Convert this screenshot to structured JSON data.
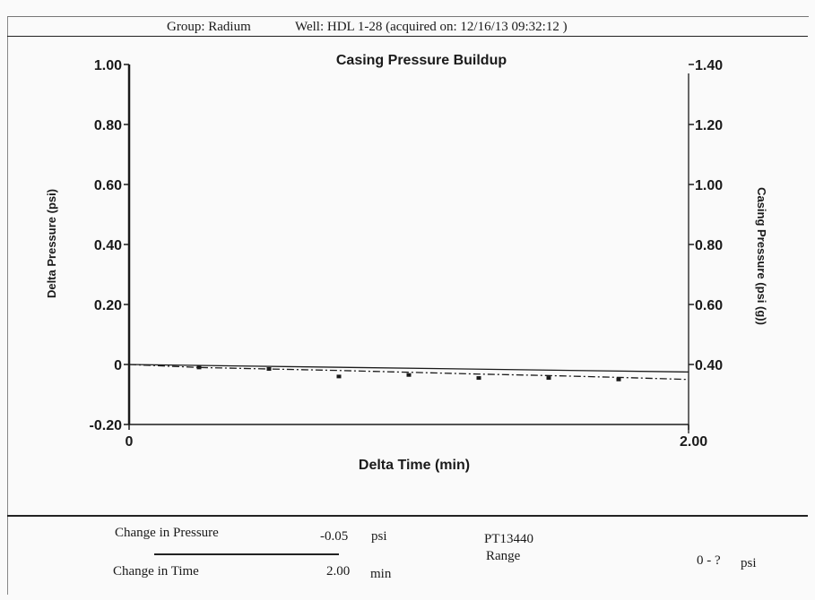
{
  "header": {
    "group_text": "Group: Radium",
    "well_text": "Well: HDL 1-28 (acquired on: 12/16/13 09:32:12 )"
  },
  "chart_data": {
    "type": "line",
    "title": "Casing Pressure Buildup",
    "xlabel": "Delta Time (min)",
    "ylabel": "Delta Pressure (psi)",
    "y2label": "Casing Pressure (psi (g))",
    "xlim": [
      0,
      2.0
    ],
    "ylim": [
      -0.2,
      1.0
    ],
    "y2lim": [
      0.2,
      1.4
    ],
    "x_tick_labels": [
      "0",
      "2.00"
    ],
    "y_tick_labels": [
      "1.00",
      "0.80",
      "0.60",
      "0.40",
      "0.20",
      "0",
      "-0.20"
    ],
    "y2_tick_labels": [
      "1.40",
      "1.20",
      "1.00",
      "0.80",
      "0.60",
      "0.40"
    ],
    "grid": false,
    "series": [
      {
        "axis": "left",
        "style": "dash-dot",
        "x": [
          0,
          0.25,
          0.5,
          0.75,
          1.0,
          1.25,
          1.5,
          1.75,
          2.0
        ],
        "y": [
          0.0,
          -0.01,
          -0.015,
          -0.02,
          -0.026,
          -0.032,
          -0.037,
          -0.043,
          -0.05
        ]
      },
      {
        "axis": "right",
        "style": "solid",
        "x": [
          0,
          2.0
        ],
        "y": [
          0.4,
          0.375
        ]
      }
    ],
    "markers": {
      "x": [
        0.25,
        0.5,
        0.75,
        1.0,
        1.25,
        1.5,
        1.75
      ],
      "y": [
        -0.01,
        -0.015,
        -0.04,
        -0.035,
        -0.045,
        -0.045,
        -0.05
      ]
    }
  },
  "footer": {
    "change_pressure_label": "Change in Pressure",
    "change_pressure_value": "-0.05",
    "change_pressure_unit": "psi",
    "change_time_label": "Change in Time",
    "change_time_value": "2.00",
    "change_time_unit": "min",
    "gauge_id": "PT13440",
    "range_label": "Range",
    "range_value": "0 - ?",
    "range_unit": "psi"
  }
}
